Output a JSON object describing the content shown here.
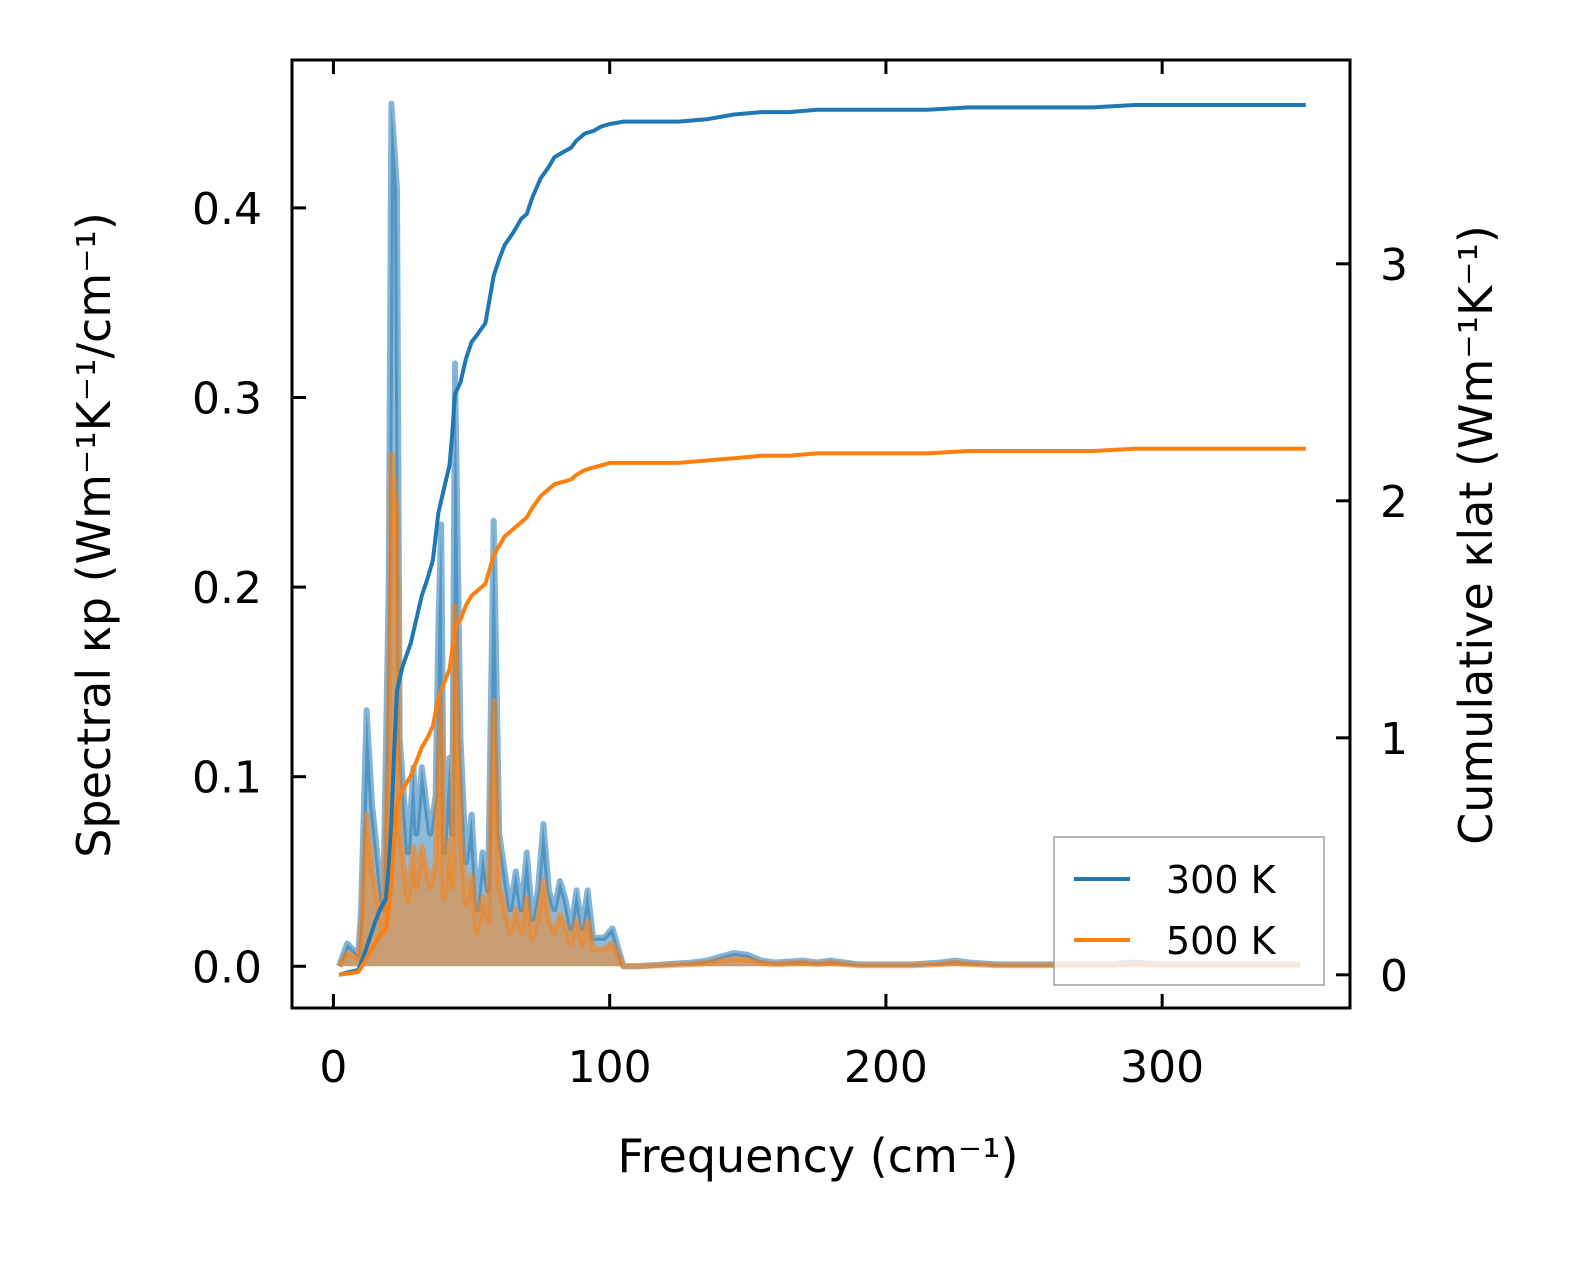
{
  "chart_data": {
    "type": "line",
    "title": "",
    "xlabel": "Frequency (cm⁻¹)",
    "ylabel_left": "Spectral κp (Wm⁻¹K⁻¹/cm⁻¹)",
    "ylabel_right": "Cumulative κlat (Wm⁻¹K⁻¹)",
    "xlim": [
      -15,
      368
    ],
    "ylim_left": [
      -0.022,
      0.478
    ],
    "ylim_right": [
      -0.14,
      3.86
    ],
    "x_ticks": [
      0,
      100,
      200,
      300
    ],
    "y_left_ticks": [
      "0.0",
      "0.1",
      "0.2",
      "0.3",
      "0.4"
    ],
    "y_right_ticks": [
      "0",
      "1",
      "2",
      "3"
    ],
    "legend_position": "lower-right",
    "series": [
      {
        "name": "300 K",
        "color": "#1f77b4",
        "spectral": [
          [
            2,
            0
          ],
          [
            5,
            0.012
          ],
          [
            9,
            0.006
          ],
          [
            10,
            0.03
          ],
          [
            12,
            0.135
          ],
          [
            14,
            0.085
          ],
          [
            18,
            0.03
          ],
          [
            20,
            0.2
          ],
          [
            21,
            0.455
          ],
          [
            23,
            0.41
          ],
          [
            24,
            0.12
          ],
          [
            27,
            0.06
          ],
          [
            29,
            0.105
          ],
          [
            30,
            0.07
          ],
          [
            32,
            0.105
          ],
          [
            35,
            0.07
          ],
          [
            37,
            0.09
          ],
          [
            38,
            0.18
          ],
          [
            39,
            0.233
          ],
          [
            40,
            0.06
          ],
          [
            42,
            0.11
          ],
          [
            43,
            0.07
          ],
          [
            44,
            0.318
          ],
          [
            46,
            0.12
          ],
          [
            48,
            0.055
          ],
          [
            50,
            0.08
          ],
          [
            52,
            0.03
          ],
          [
            54,
            0.06
          ],
          [
            56,
            0.04
          ],
          [
            58,
            0.235
          ],
          [
            60,
            0.07
          ],
          [
            62,
            0.05
          ],
          [
            64,
            0.03
          ],
          [
            66,
            0.05
          ],
          [
            68,
            0.03
          ],
          [
            70,
            0.06
          ],
          [
            72,
            0.025
          ],
          [
            74,
            0.04
          ],
          [
            76,
            0.075
          ],
          [
            78,
            0.04
          ],
          [
            80,
            0.03
          ],
          [
            82,
            0.045
          ],
          [
            84,
            0.035
          ],
          [
            86,
            0.02
          ],
          [
            88,
            0.04
          ],
          [
            90,
            0.02
          ],
          [
            92,
            0.04
          ],
          [
            94,
            0.015
          ],
          [
            98,
            0.015
          ],
          [
            101,
            0.02
          ],
          [
            105,
            0
          ],
          [
            110,
            0
          ],
          [
            120,
            0.001
          ],
          [
            130,
            0.002
          ],
          [
            135,
            0.003
          ],
          [
            140,
            0.005
          ],
          [
            145,
            0.007
          ],
          [
            150,
            0.006
          ],
          [
            155,
            0.003
          ],
          [
            160,
            0.002
          ],
          [
            170,
            0.003
          ],
          [
            175,
            0.002
          ],
          [
            180,
            0.003
          ],
          [
            190,
            0.001
          ],
          [
            200,
            0.001
          ],
          [
            210,
            0.001
          ],
          [
            220,
            0.002
          ],
          [
            225,
            0.003
          ],
          [
            230,
            0.002
          ],
          [
            240,
            0.001
          ],
          [
            250,
            0.001
          ],
          [
            260,
            0.001
          ],
          [
            270,
            0.001
          ],
          [
            280,
            0.001
          ],
          [
            290,
            0.002
          ],
          [
            300,
            0.001
          ],
          [
            310,
            0.001
          ],
          [
            320,
            0.001
          ],
          [
            330,
            0.001
          ],
          [
            340,
            0.001
          ],
          [
            350,
            0.001
          ]
        ],
        "cumulative": [
          [
            2,
            0
          ],
          [
            5,
            0.01
          ],
          [
            9,
            0.02
          ],
          [
            11,
            0.08
          ],
          [
            13,
            0.15
          ],
          [
            15,
            0.22
          ],
          [
            17,
            0.28
          ],
          [
            19,
            0.32
          ],
          [
            20,
            0.45
          ],
          [
            21,
            0.65
          ],
          [
            22,
            0.95
          ],
          [
            23,
            1.2
          ],
          [
            25,
            1.3
          ],
          [
            28,
            1.4
          ],
          [
            30,
            1.5
          ],
          [
            32,
            1.6
          ],
          [
            34,
            1.67
          ],
          [
            36,
            1.75
          ],
          [
            38,
            1.95
          ],
          [
            40,
            2.05
          ],
          [
            42,
            2.15
          ],
          [
            43,
            2.28
          ],
          [
            44,
            2.45
          ],
          [
            46,
            2.5
          ],
          [
            48,
            2.6
          ],
          [
            50,
            2.67
          ],
          [
            52,
            2.7
          ],
          [
            55,
            2.75
          ],
          [
            58,
            2.95
          ],
          [
            60,
            3.02
          ],
          [
            62,
            3.08
          ],
          [
            65,
            3.13
          ],
          [
            68,
            3.19
          ],
          [
            70,
            3.21
          ],
          [
            72,
            3.28
          ],
          [
            75,
            3.36
          ],
          [
            78,
            3.41
          ],
          [
            80,
            3.45
          ],
          [
            83,
            3.47
          ],
          [
            86,
            3.49
          ],
          [
            88,
            3.52
          ],
          [
            91,
            3.55
          ],
          [
            94,
            3.56
          ],
          [
            97,
            3.58
          ],
          [
            100,
            3.59
          ],
          [
            105,
            3.6
          ],
          [
            115,
            3.6
          ],
          [
            125,
            3.6
          ],
          [
            135,
            3.61
          ],
          [
            145,
            3.63
          ],
          [
            155,
            3.64
          ],
          [
            165,
            3.64
          ],
          [
            175,
            3.65
          ],
          [
            185,
            3.65
          ],
          [
            200,
            3.65
          ],
          [
            215,
            3.65
          ],
          [
            230,
            3.66
          ],
          [
            245,
            3.66
          ],
          [
            260,
            3.66
          ],
          [
            275,
            3.66
          ],
          [
            290,
            3.67
          ],
          [
            305,
            3.67
          ],
          [
            320,
            3.67
          ],
          [
            335,
            3.67
          ],
          [
            352,
            3.67
          ]
        ]
      },
      {
        "name": "500 K",
        "color": "#ff7f0e",
        "spectral": [
          [
            2,
            0
          ],
          [
            5,
            0.007
          ],
          [
            9,
            0.004
          ],
          [
            10,
            0.018
          ],
          [
            12,
            0.08
          ],
          [
            14,
            0.05
          ],
          [
            18,
            0.018
          ],
          [
            20,
            0.12
          ],
          [
            21,
            0.27
          ],
          [
            23,
            0.24
          ],
          [
            24,
            0.07
          ],
          [
            27,
            0.035
          ],
          [
            29,
            0.063
          ],
          [
            30,
            0.042
          ],
          [
            32,
            0.063
          ],
          [
            35,
            0.042
          ],
          [
            37,
            0.054
          ],
          [
            38,
            0.108
          ],
          [
            39,
            0.14
          ],
          [
            40,
            0.036
          ],
          [
            42,
            0.066
          ],
          [
            43,
            0.042
          ],
          [
            44,
            0.19
          ],
          [
            46,
            0.072
          ],
          [
            48,
            0.033
          ],
          [
            50,
            0.048
          ],
          [
            52,
            0.018
          ],
          [
            54,
            0.036
          ],
          [
            56,
            0.024
          ],
          [
            58,
            0.14
          ],
          [
            60,
            0.042
          ],
          [
            62,
            0.03
          ],
          [
            64,
            0.018
          ],
          [
            66,
            0.03
          ],
          [
            68,
            0.018
          ],
          [
            70,
            0.036
          ],
          [
            72,
            0.015
          ],
          [
            74,
            0.024
          ],
          [
            76,
            0.045
          ],
          [
            78,
            0.024
          ],
          [
            80,
            0.018
          ],
          [
            82,
            0.027
          ],
          [
            84,
            0.021
          ],
          [
            86,
            0.012
          ],
          [
            88,
            0.024
          ],
          [
            90,
            0.012
          ],
          [
            92,
            0.024
          ],
          [
            94,
            0.009
          ],
          [
            98,
            0.009
          ],
          [
            101,
            0.012
          ],
          [
            105,
            0
          ],
          [
            110,
            0
          ],
          [
            120,
            0.0006
          ],
          [
            130,
            0.0012
          ],
          [
            135,
            0.0018
          ],
          [
            140,
            0.003
          ],
          [
            145,
            0.004
          ],
          [
            150,
            0.0036
          ],
          [
            155,
            0.0018
          ],
          [
            160,
            0.0012
          ],
          [
            170,
            0.0018
          ],
          [
            175,
            0.0012
          ],
          [
            180,
            0.0018
          ],
          [
            190,
            0.0006
          ],
          [
            200,
            0.0006
          ],
          [
            210,
            0.0006
          ],
          [
            220,
            0.0012
          ],
          [
            225,
            0.0018
          ],
          [
            230,
            0.0012
          ],
          [
            240,
            0.0006
          ],
          [
            250,
            0.0006
          ],
          [
            260,
            0.0006
          ],
          [
            270,
            0.0006
          ],
          [
            280,
            0.0006
          ],
          [
            290,
            0.0012
          ],
          [
            300,
            0.0006
          ],
          [
            310,
            0.0006
          ],
          [
            320,
            0.0006
          ],
          [
            330,
            0.0006
          ],
          [
            340,
            0.0006
          ],
          [
            350,
            0.0006
          ]
        ],
        "cumulative": [
          [
            2,
            0
          ],
          [
            5,
            0.005
          ],
          [
            9,
            0.012
          ],
          [
            11,
            0.048
          ],
          [
            13,
            0.09
          ],
          [
            15,
            0.13
          ],
          [
            17,
            0.17
          ],
          [
            19,
            0.19
          ],
          [
            20,
            0.27
          ],
          [
            21,
            0.39
          ],
          [
            22,
            0.57
          ],
          [
            23,
            0.72
          ],
          [
            25,
            0.78
          ],
          [
            28,
            0.84
          ],
          [
            30,
            0.9
          ],
          [
            32,
            0.96
          ],
          [
            34,
            1.0
          ],
          [
            36,
            1.05
          ],
          [
            38,
            1.17
          ],
          [
            40,
            1.23
          ],
          [
            42,
            1.29
          ],
          [
            43,
            1.37
          ],
          [
            44,
            1.47
          ],
          [
            46,
            1.5
          ],
          [
            48,
            1.56
          ],
          [
            50,
            1.6
          ],
          [
            52,
            1.62
          ],
          [
            55,
            1.65
          ],
          [
            58,
            1.77
          ],
          [
            60,
            1.81
          ],
          [
            62,
            1.85
          ],
          [
            65,
            1.88
          ],
          [
            68,
            1.91
          ],
          [
            70,
            1.93
          ],
          [
            72,
            1.97
          ],
          [
            75,
            2.02
          ],
          [
            78,
            2.05
          ],
          [
            80,
            2.07
          ],
          [
            83,
            2.08
          ],
          [
            86,
            2.09
          ],
          [
            88,
            2.11
          ],
          [
            91,
            2.13
          ],
          [
            94,
            2.14
          ],
          [
            97,
            2.15
          ],
          [
            100,
            2.16
          ],
          [
            105,
            2.16
          ],
          [
            115,
            2.16
          ],
          [
            125,
            2.16
          ],
          [
            135,
            2.17
          ],
          [
            145,
            2.18
          ],
          [
            155,
            2.19
          ],
          [
            165,
            2.19
          ],
          [
            175,
            2.2
          ],
          [
            185,
            2.2
          ],
          [
            200,
            2.2
          ],
          [
            215,
            2.2
          ],
          [
            230,
            2.21
          ],
          [
            245,
            2.21
          ],
          [
            260,
            2.21
          ],
          [
            275,
            2.21
          ],
          [
            290,
            2.22
          ],
          [
            305,
            2.22
          ],
          [
            320,
            2.22
          ],
          [
            335,
            2.22
          ],
          [
            352,
            2.22
          ]
        ]
      }
    ]
  }
}
